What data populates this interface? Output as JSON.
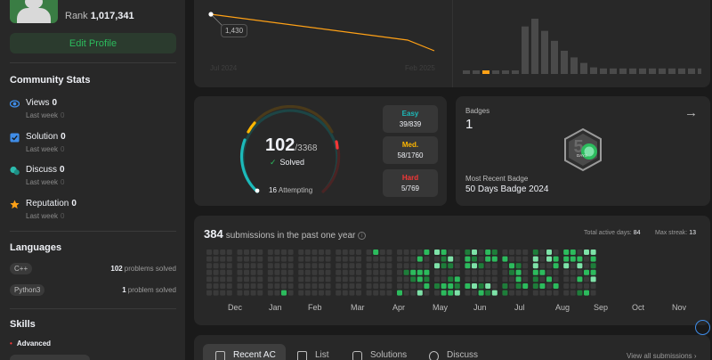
{
  "profile": {
    "rank_label": "Rank",
    "rank_value": "1,017,341",
    "edit_label": "Edit Profile"
  },
  "community": {
    "title": "Community Stats",
    "items": [
      {
        "label": "Views",
        "value": "0",
        "sub_label": "Last week",
        "sub_value": "0",
        "icon": "eye-icon",
        "color": "#3f8de8"
      },
      {
        "label": "Solution",
        "value": "0",
        "sub_label": "Last week",
        "sub_value": "0",
        "icon": "check-square-icon",
        "color": "#3f8de8"
      },
      {
        "label": "Discuss",
        "value": "0",
        "sub_label": "Last week",
        "sub_value": "0",
        "icon": "chat-bubble-icon",
        "color": "#2cbbad"
      },
      {
        "label": "Reputation",
        "value": "0",
        "sub_label": "Last week",
        "sub_value": "0",
        "icon": "star-icon",
        "color": "#ffa116"
      }
    ]
  },
  "languages": {
    "title": "Languages",
    "items": [
      {
        "name": "C++",
        "count": "102",
        "suffix": "problems solved"
      },
      {
        "name": "Python3",
        "count": "1",
        "suffix": "problem solved"
      }
    ]
  },
  "skills": {
    "title": "Skills",
    "level": "Advanced"
  },
  "rating": {
    "tooltip": "1,430",
    "x_start": "Jul 2024",
    "x_end": "Feb 2025",
    "line_color": "#ffa116"
  },
  "histogram": {
    "bars": [
      0.06,
      0.06,
      0.06,
      0.06,
      0.06,
      0.06,
      0.86,
      1.0,
      0.78,
      0.6,
      0.42,
      0.3,
      0.2,
      0.12,
      0.1,
      0.1,
      0.1,
      0.1,
      0.1,
      0.1,
      0.1,
      0.1,
      0.1,
      0.1,
      0.1
    ],
    "highlight_index": 2,
    "highlight_color": "#ffa116"
  },
  "solved": {
    "count": "102",
    "total": "/3368",
    "label": "Solved",
    "attempting_count": "16",
    "attempting_label": "Attempting",
    "difficulties": [
      {
        "label": "Easy",
        "value": "39/839",
        "color": "#1cbaba",
        "fraction": 0.0465
      },
      {
        "label": "Med.",
        "value": "58/1760",
        "color": "#ffb700",
        "fraction": 0.033
      },
      {
        "label": "Hard",
        "value": "5/769",
        "color": "#f63737",
        "fraction": 0.0065
      }
    ]
  },
  "badges": {
    "title": "Badges",
    "count": "1",
    "recent_label": "Most Recent Badge",
    "recent_name": "50 Days Badge 2024",
    "emblem_text": "DAYS"
  },
  "submissions": {
    "count": "384",
    "label": "submissions in the past one year",
    "active_label": "Total active days:",
    "active_value": "84",
    "streak_label": "Max streak:",
    "streak_value": "13",
    "months": [
      "Dec",
      "Jan",
      "Feb",
      "Mar",
      "Apr",
      "May",
      "Jun",
      "Jul",
      "Aug",
      "Sep",
      "Oct",
      "Nov"
    ],
    "colors": {
      "empty": "#3a3a3a",
      "l1": "#0e4429",
      "l2": "#1e7d3a",
      "l3": "#2cbb5d",
      "l4": "#7ee2a8"
    }
  },
  "tabs": {
    "items": [
      {
        "label": "Recent AC",
        "icon": "recent-ac-icon"
      },
      {
        "label": "List",
        "icon": "list-icon"
      },
      {
        "label": "Solutions",
        "icon": "solutions-icon"
      },
      {
        "label": "Discuss",
        "icon": "discuss-icon"
      }
    ],
    "view_all": "View all submissions ›"
  }
}
